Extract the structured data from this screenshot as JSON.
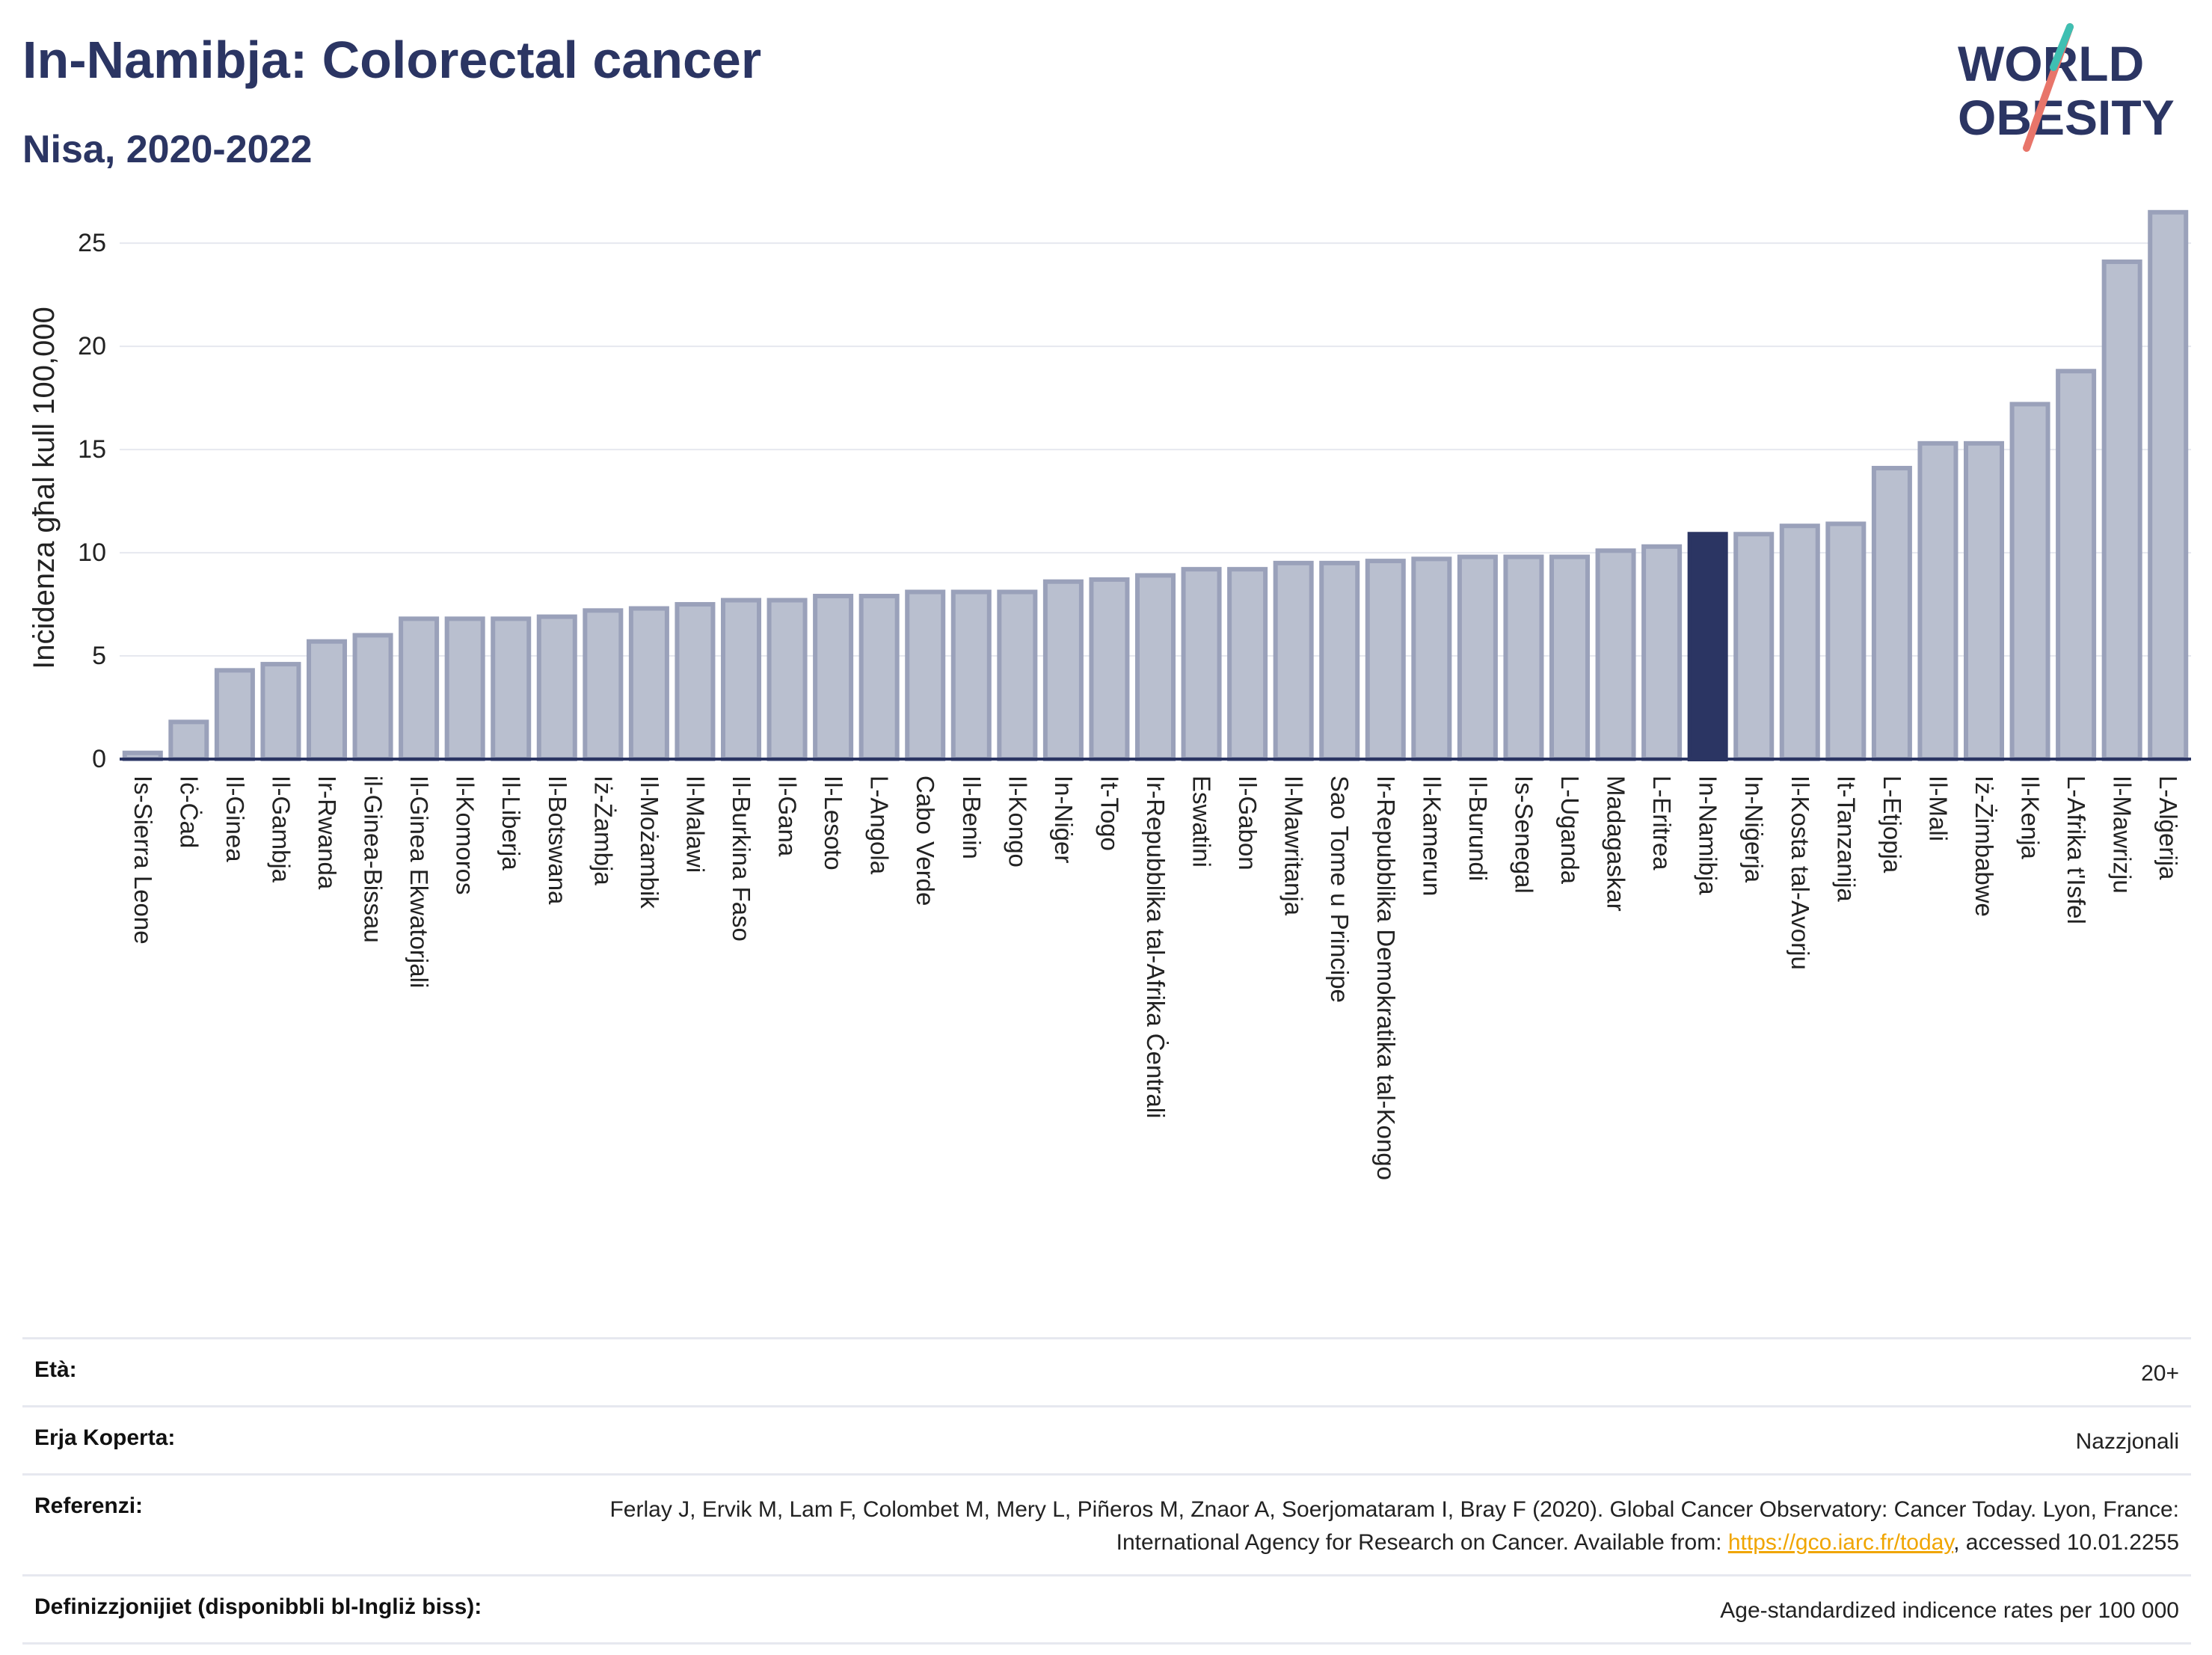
{
  "header": {
    "title": "In-Namibja: Colorectal cancer",
    "subtitle": "Nisa, 2020-2022"
  },
  "logo": {
    "line1": "WORLD",
    "line2": "OBESITY",
    "text": "WORLD OBESITY"
  },
  "colors": {
    "bar": "#b9bfcf",
    "bar_stroke": "#9aa1ba",
    "highlight": "#2b3563",
    "title": "#2b3563"
  },
  "chart_data": {
    "type": "bar",
    "ylabel": "Inċidenza għal kull 100,000",
    "ylim": [
      0,
      27
    ],
    "yticks": [
      0,
      5,
      10,
      15,
      20,
      25
    ],
    "grid": true,
    "highlight": "In-Namibja",
    "categories": [
      "Is-Sierra Leone",
      "Iċ-Ċad",
      "Il-Ginea",
      "Il-Gambja",
      "Ir-Rwanda",
      "il-Ginea-Bissau",
      "Il-Ginea Ekwatorjali",
      "Il-Komoros",
      "Il-Liberja",
      "Il-Botswana",
      "Iż-Żambja",
      "Il-Możambik",
      "Il-Malawi",
      "Il-Burkina Faso",
      "Il-Gana",
      "Il-Lesoto",
      "L-Angola",
      "Cabo Verde",
      "Il-Benin",
      "Il-Kongo",
      "In-Niġer",
      "It-Togo",
      "Ir-Repubblika tal-Afrika Ċentrali",
      "Eswatini",
      "Il-Gabon",
      "Il-Mawritanja",
      "Sao Tome u Principe",
      "Ir-Repubblika Demokratika tal-Kongo",
      "Il-Kamerun",
      "Il-Burundi",
      "Is-Senegal",
      "L-Uganda",
      "Madagaskar",
      "L-Eritrea",
      "In-Namibja",
      "In-Niġerja",
      "Il-Kosta tal-Avorju",
      "It-Tanzanija",
      "L-Etjopja",
      "Il-Mali",
      "Iż-Żimbabwe",
      "Il-Kenja",
      "L-Afrika t'Isfel",
      "Il-Mawrizju",
      "L-Alġerija"
    ],
    "values": [
      0.3,
      1.8,
      4.3,
      4.6,
      5.7,
      6.0,
      6.8,
      6.8,
      6.8,
      6.9,
      7.2,
      7.3,
      7.5,
      7.7,
      7.7,
      7.9,
      7.9,
      8.1,
      8.1,
      8.1,
      8.6,
      8.7,
      8.9,
      9.2,
      9.2,
      9.5,
      9.5,
      9.6,
      9.7,
      9.8,
      9.8,
      9.8,
      10.1,
      10.3,
      10.9,
      10.9,
      11.3,
      11.4,
      14.1,
      15.3,
      15.3,
      17.2,
      18.8,
      24.1,
      26.5
    ]
  },
  "meta": {
    "age_label": "Età:",
    "age_value": "20+",
    "area_label": "Erja Koperta:",
    "area_value": "Nazzjonali",
    "ref_label": "Referenzi:",
    "ref_text_1": "Ferlay J, Ervik M, Lam F, Colombet M, Mery L, Piñeros M, Znaor A, Soerjomataram I, Bray F (2020). Global Cancer Observatory: Cancer Today. Lyon, France: International Agency for Research on Cancer. Available from: ",
    "ref_link": "https://gco.iarc.fr/today",
    "ref_text_2": ", accessed 10.01.2255",
    "def_label": "Definizzjonijiet (disponibbli bl-Ingliż biss):",
    "def_value": "Age-standardized indicence rates per 100 000"
  }
}
